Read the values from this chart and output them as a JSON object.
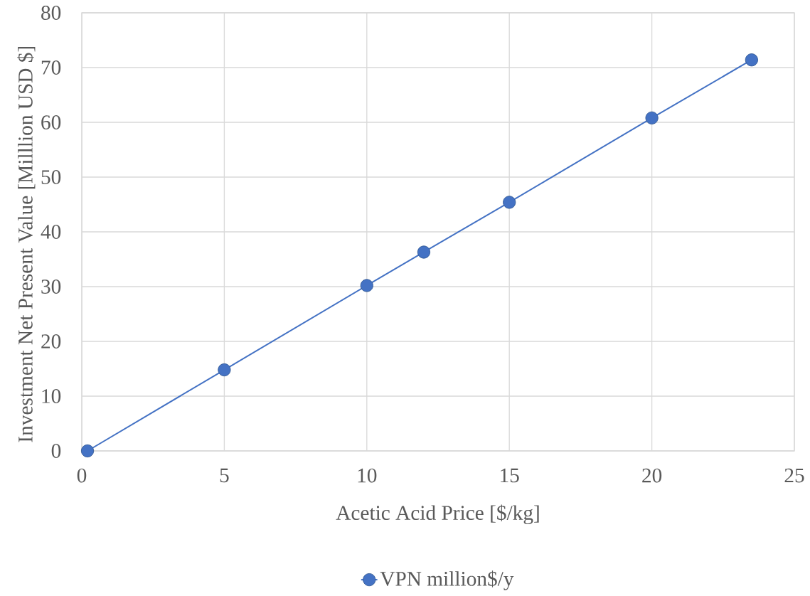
{
  "chart_data": {
    "type": "line",
    "xlabel": "Acetic Acid Price [$/kg]",
    "ylabel": "Investment Net Present Value [Milllion USD $]",
    "x": [
      0.2,
      5,
      10,
      12,
      15,
      20,
      23.5
    ],
    "series": [
      {
        "name": "VPN million$/y",
        "color": "#4472c4",
        "values": [
          0,
          14.8,
          30.2,
          36.3,
          45.4,
          60.8,
          71.4
        ]
      }
    ],
    "xlim": [
      0,
      25
    ],
    "ylim": [
      0,
      80
    ],
    "xticks": [
      0,
      5,
      10,
      15,
      20,
      25
    ],
    "yticks": [
      0,
      10,
      20,
      30,
      40,
      50,
      60,
      70,
      80
    ],
    "grid": true,
    "legend": "bottom",
    "marker": "circle",
    "line_style": "solid"
  }
}
